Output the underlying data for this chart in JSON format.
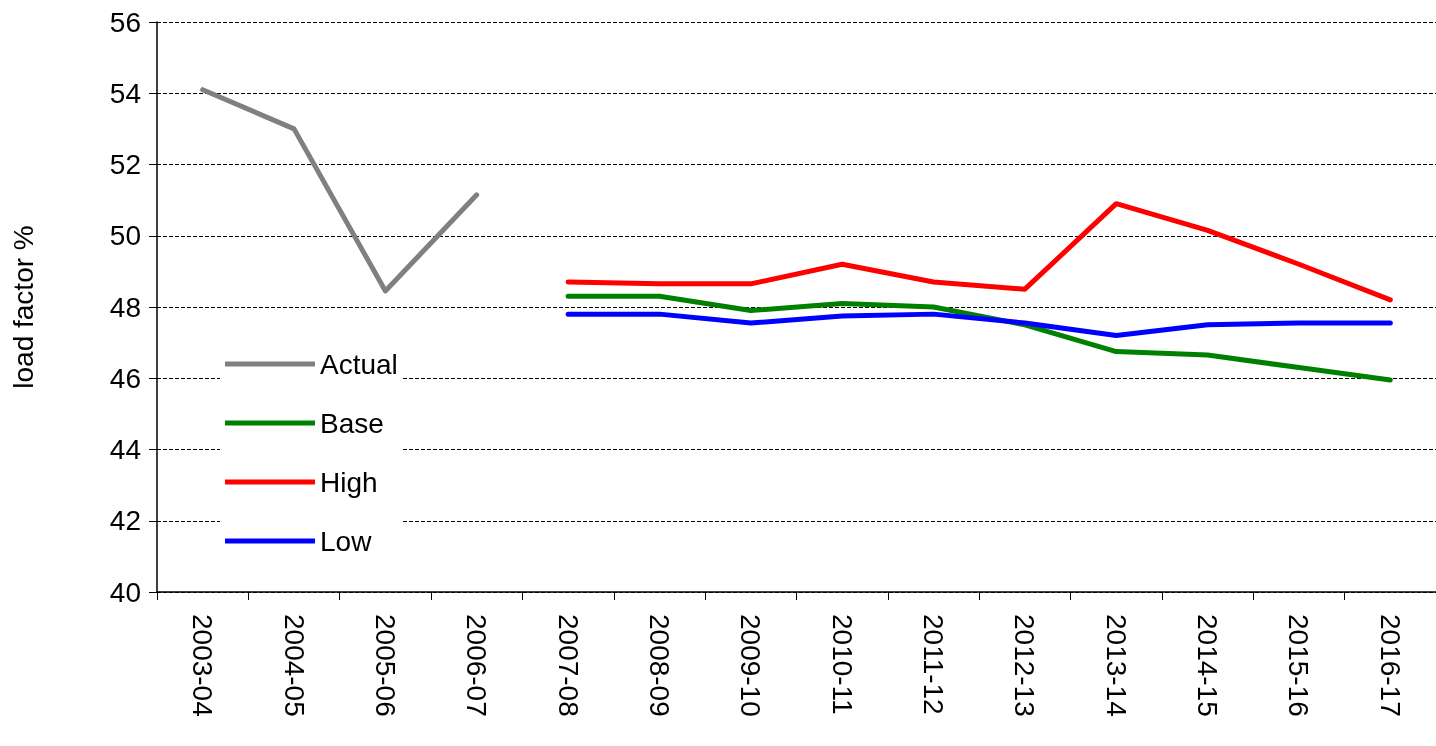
{
  "chart_data": {
    "type": "line",
    "ylabel": "load factor %",
    "categories": [
      "2003-04",
      "2004-05",
      "2005-06",
      "2006-07",
      "2007-08",
      "2008-09",
      "2009-10",
      "2010-11",
      "2011-12",
      "2012-13",
      "2013-14",
      "2014-15",
      "2015-16",
      "2016-17"
    ],
    "series": [
      {
        "name": "Actual",
        "color": "#808080",
        "values": [
          54.1,
          53.0,
          48.45,
          51.15,
          null,
          null,
          null,
          null,
          null,
          null,
          null,
          null,
          null,
          null
        ]
      },
      {
        "name": "Base",
        "color": "#008000",
        "values": [
          null,
          null,
          null,
          null,
          48.3,
          48.3,
          47.9,
          48.1,
          48.0,
          47.5,
          46.75,
          46.65,
          46.3,
          45.95
        ]
      },
      {
        "name": "High",
        "color": "#ff0000",
        "values": [
          null,
          null,
          null,
          null,
          48.7,
          48.65,
          48.65,
          49.2,
          48.7,
          48.5,
          50.9,
          50.15,
          49.2,
          48.2
        ]
      },
      {
        "name": "Low",
        "color": "#0000ff",
        "values": [
          null,
          null,
          null,
          null,
          47.8,
          47.8,
          47.55,
          47.75,
          47.8,
          47.55,
          47.2,
          47.5,
          47.55,
          47.55
        ]
      }
    ],
    "ylim": [
      40,
      56
    ],
    "yticks": [
      40,
      42,
      44,
      46,
      48,
      50,
      52,
      54,
      56
    ],
    "grid": "y",
    "legend": "bottom left",
    "marker": "none",
    "line_style": "solid"
  }
}
